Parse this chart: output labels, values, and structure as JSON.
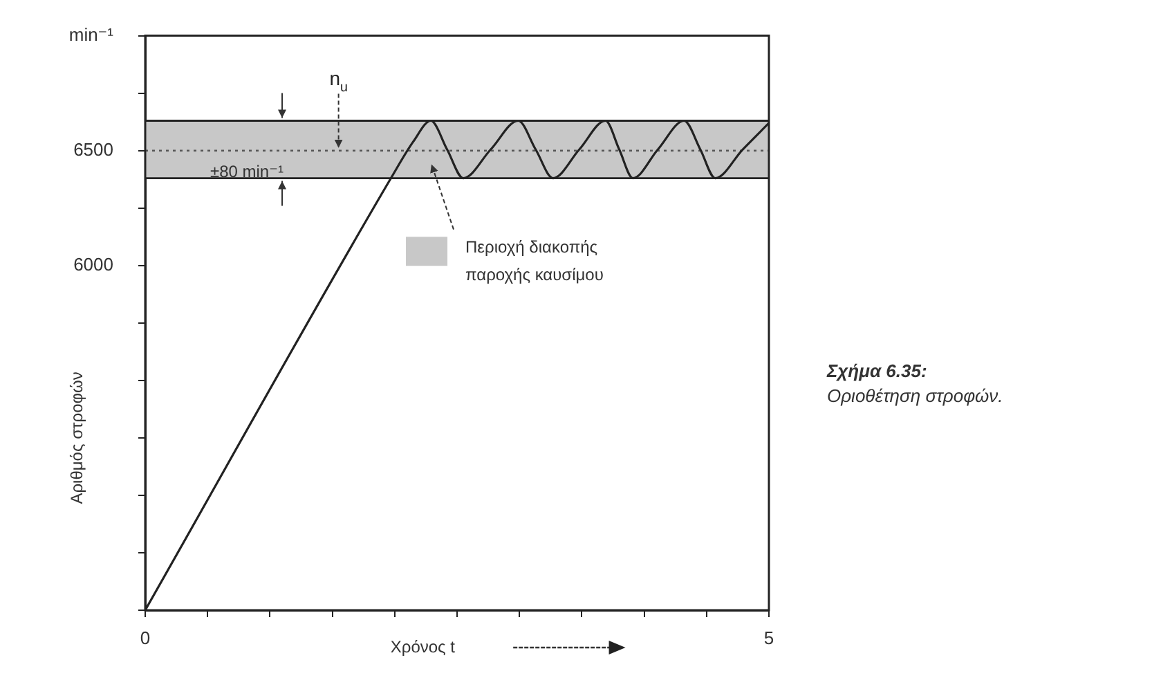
{
  "chart_data": {
    "type": "line",
    "xlabel": "Χρόνος t",
    "ylabel": "Αριθμός στροφών",
    "x": [
      0,
      1.97,
      2.15,
      2.29,
      2.42,
      2.55,
      2.77,
      2.99,
      3.13,
      3.27,
      3.48,
      3.69,
      3.8,
      3.91,
      4.11,
      4.32,
      4.45,
      4.57,
      4.79,
      5
    ],
    "series": [
      {
        "color": "#222222",
        "values": [
          4500,
          6380,
          6540,
          6630,
          6505,
          6380,
          6505,
          6630,
          6505,
          6380,
          6505,
          6630,
          6505,
          6380,
          6505,
          6630,
          6505,
          6380,
          6505,
          6620
        ]
      }
    ],
    "xlim": [
      0,
      5
    ],
    "xticks": [
      0,
      {
        "value": 0.5,
        "label": null
      },
      {
        "value": 1,
        "label": null
      },
      {
        "value": 1.5,
        "label": null
      },
      {
        "value": 2,
        "label": null
      },
      {
        "value": 2.5,
        "label": null
      },
      {
        "value": 3,
        "label": null
      },
      {
        "value": 3.5,
        "label": null
      },
      {
        "value": 4,
        "label": null
      },
      {
        "value": 4.5,
        "label": null
      },
      5
    ],
    "ylim": [
      4500,
      7000
    ],
    "yticks": [
      {
        "value": 4500,
        "label": null
      },
      {
        "value": 4750,
        "label": null
      },
      {
        "value": 5000,
        "label": null
      },
      {
        "value": 5250,
        "label": null
      },
      {
        "value": 5500,
        "label": null
      },
      {
        "value": 5750,
        "label": null
      },
      6000,
      {
        "value": 6250,
        "label": null
      },
      6500,
      {
        "value": 6750,
        "label": null
      },
      {
        "value": 7000,
        "label": "min⁻¹"
      }
    ],
    "ref_lines": [
      {
        "axis": "y",
        "value": 6500,
        "label": "n$_{u}$",
        "line_style": "dotted",
        "color": "#555555"
      },
      {
        "axis": "y",
        "value": 6630,
        "line_style": "solid",
        "color": "#222222"
      },
      {
        "axis": "y",
        "value": 6380,
        "line_style": "solid",
        "color": "#222222"
      }
    ],
    "bands": [
      {
        "axis": "y",
        "from": 6380,
        "to": 6630,
        "label": "Περιοχή διακοπής παροχής καυσίμου",
        "color": "#c8c8c8"
      }
    ],
    "annotations": [
      "±80 min⁻¹",
      "Σχήμα 6.35:",
      "Οριοθέτηση στροφών."
    ],
    "grid": false,
    "marker": "none",
    "line_style": "solid"
  }
}
